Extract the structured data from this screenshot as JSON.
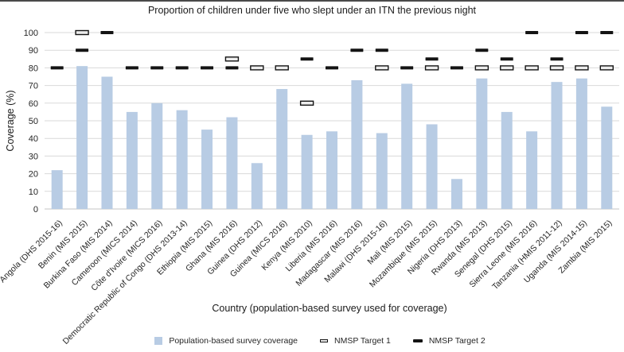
{
  "colors": {
    "bar": "#b8cce4",
    "gridline": "#d9d9d9",
    "axis_line": "#c6c6c6",
    "target_solid": "#141414",
    "target_open_fill": "#ececec",
    "text": "#262626",
    "title_text": "#1a1a1a"
  },
  "chart_data": {
    "type": "bar",
    "title": "Proportion of children under five who slept under an ITN the previous night",
    "xlabel": "Country (population-based survey used for coverage)",
    "ylabel": "Coverage (%)",
    "ylim": [
      0,
      100
    ],
    "yticks": [
      0,
      10,
      20,
      30,
      40,
      50,
      60,
      70,
      80,
      90,
      100
    ],
    "grid": true,
    "legend_position": "bottom",
    "categories": [
      "Angola (DHS 2015-16)",
      "Benin (MIS 2015)",
      "Burkina Faso (MIS 2014)",
      "Cameroon (MICS 2014)",
      "Côte d'Ivoire (MICS 2016)",
      "Democratic Republic of Congo (DHS 2013-14)",
      "Ethiopia (MIS 2015)",
      "Ghana (MIS 2016)",
      "Guinea (DHS 2012)",
      "Guinea (MICS 2016)",
      "Kenya (MIS 2010)",
      "Liberia (MIS 2016)",
      "Madagascar (MIS 2016)",
      "Malawi (DHS 2015-16)",
      "Mali (MIS 2015)",
      "Mozambique (MIS 2015)",
      "Nigeria (DHS 2013)",
      "Rwanda (MIS 2013)",
      "Senegal (DHS 2015)",
      "Sierra Leone (MIS 2016)",
      "Tanzania (HMIS 2011-12)",
      "Uganda (MIS 2014-15)",
      "Zambia (MIS 2015)"
    ],
    "series": [
      {
        "name": "Population-based survey coverage",
        "type": "bar",
        "values": [
          22,
          81,
          75,
          55,
          60,
          56,
          45,
          52,
          26,
          68,
          42,
          44,
          73,
          43,
          71,
          48,
          17,
          74,
          55,
          44,
          72,
          74,
          58
        ]
      },
      {
        "name": "NMSP Target 1",
        "type": "dash-open",
        "values": [
          null,
          100,
          null,
          null,
          null,
          null,
          null,
          85,
          80,
          80,
          60,
          null,
          null,
          80,
          null,
          80,
          null,
          80,
          80,
          80,
          80,
          80,
          80
        ]
      },
      {
        "name": "NMSP Target 2",
        "type": "dash-solid",
        "values": [
          80,
          90,
          100,
          80,
          80,
          80,
          80,
          80,
          null,
          null,
          85,
          80,
          90,
          90,
          80,
          85,
          80,
          90,
          85,
          100,
          85,
          100,
          100
        ]
      }
    ]
  }
}
